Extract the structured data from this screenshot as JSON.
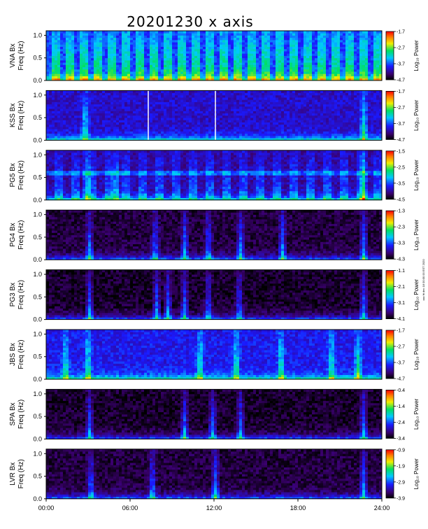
{
  "chart_data": {
    "type": "heatmap",
    "title": "20201230 x axis",
    "x_ticks": [
      "00:00",
      "06:00",
      "12:00",
      "18:00",
      "24:00"
    ],
    "xlim": [
      0,
      24
    ],
    "y_ticks": [
      "0.0",
      "0.5",
      "1.0"
    ],
    "ylim": [
      0,
      1.1
    ],
    "colorbar_label": "Log₁₀ Power",
    "side_note": "xxx fri dec 18 00:00 00 EST 2020",
    "panels": [
      {
        "station": "VNA Bx",
        "ylabel_freq": "Freq (Hz)",
        "cbar_ticks": [
          "-1.7",
          "-2.7",
          "-3.7",
          "-4.7"
        ],
        "cmin": -4.7,
        "cmax": -1.7,
        "base": 0.32,
        "stripes": 48,
        "stripe_amp": 0.28,
        "spikes": [],
        "gaps": [],
        "bursts": []
      },
      {
        "station": "KSS Bx",
        "ylabel_freq": "Freq (Hz)",
        "cbar_ticks": [
          "-1.7",
          "-2.7",
          "-3.7",
          "-4.7"
        ],
        "cmin": -4.7,
        "cmax": -1.7,
        "base": 0.22,
        "stripes": 0,
        "stripe_amp": 0,
        "spikes": [],
        "gaps": [
          7.3,
          12.1
        ],
        "bursts": [
          2.8,
          22.7
        ]
      },
      {
        "station": "PG5 Bx",
        "ylabel_freq": "Freq (Hz)",
        "cbar_ticks": [
          "-1.5",
          "-2.5",
          "-3.5",
          "-4.5"
        ],
        "cmin": -4.5,
        "cmax": -1.5,
        "base": 0.18,
        "stripes": 40,
        "stripe_amp": 0.16,
        "spikes": [
          0.6
        ],
        "gaps": [],
        "bursts": [
          2.9,
          5.0,
          22.7
        ]
      },
      {
        "station": "PG4 Bx",
        "ylabel_freq": "Freq (Hz)",
        "cbar_ticks": [
          "-1.3",
          "-2.3",
          "-3.3",
          "-4.3"
        ],
        "cmin": -4.3,
        "cmax": -1.3,
        "base": 0.07,
        "stripes": 0,
        "stripe_amp": 0,
        "spikes": [],
        "gaps": [],
        "bursts": [
          3.1,
          7.8,
          9.9,
          11.6,
          13.9,
          16.9,
          22.7
        ]
      },
      {
        "station": "PG3 Bx",
        "ylabel_freq": "Freq (Hz)",
        "cbar_ticks": [
          "-1.1",
          "-2.1",
          "-3.1",
          "-4.1"
        ],
        "cmin": -4.1,
        "cmax": -1.1,
        "base": 0.05,
        "stripes": 0,
        "stripe_amp": 0,
        "spikes": [],
        "gaps": [],
        "bursts": [
          3.1,
          7.9,
          8.7,
          9.9,
          11.6,
          13.8,
          22.7
        ]
      },
      {
        "station": "JBS Bx",
        "ylabel_freq": "Freq (Hz)",
        "cbar_ticks": [
          "-1.7",
          "-2.7",
          "-3.7",
          "-4.7"
        ],
        "cmin": -4.7,
        "cmax": -1.7,
        "base": 0.26,
        "stripes": 0,
        "stripe_amp": 0,
        "spikes": [],
        "gaps": [],
        "bursts": [
          1.4,
          3.0,
          11.0,
          13.6,
          16.8,
          20.4,
          22.3
        ]
      },
      {
        "station": "SPA Bx",
        "ylabel_freq": "Freq (Hz)",
        "cbar_ticks": [
          "-0.4",
          "-1.4",
          "-2.4",
          "-3.4"
        ],
        "cmin": -3.4,
        "cmax": -0.4,
        "base": 0.05,
        "stripes": 0,
        "stripe_amp": 0,
        "spikes": [],
        "gaps": [],
        "bursts": [
          3.1,
          9.9,
          11.9,
          13.9,
          22.7
        ]
      },
      {
        "station": "LVR Bx",
        "ylabel_freq": "Freq (Hz)",
        "cbar_ticks": [
          "-0.9",
          "-1.9",
          "-2.9",
          "-3.9"
        ],
        "cmin": -3.9,
        "cmax": -0.9,
        "base": 0.07,
        "stripes": 0,
        "stripe_amp": 0,
        "spikes": [],
        "gaps": [],
        "bursts": [
          3.2,
          7.6,
          12.1,
          22.7
        ]
      }
    ]
  }
}
